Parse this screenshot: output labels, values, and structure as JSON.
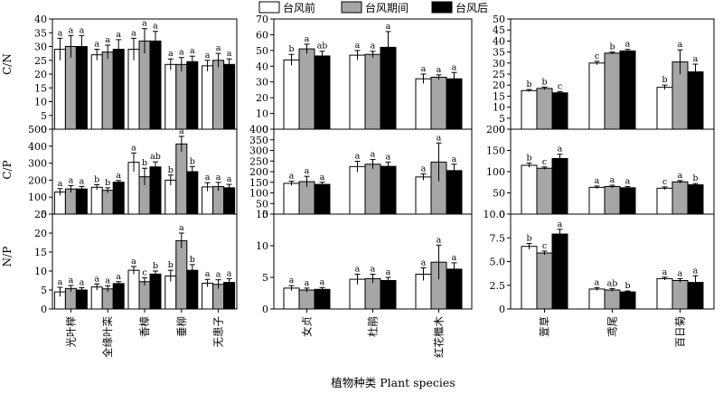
{
  "chart_data": {
    "type": "bar",
    "legend": {
      "position": "top-right",
      "series": [
        {
          "name": "台风前",
          "color": "#ffffff"
        },
        {
          "name": "台风期间",
          "color": "#a6a6a6"
        },
        {
          "name": "台风后",
          "color": "#000000"
        }
      ]
    },
    "xlabel": "植物种类  Plant species",
    "row_labels": [
      "C/N",
      "C/P",
      "N/P"
    ],
    "groups": [
      {
        "species": [
          "光叶榉",
          "全缘叶栾",
          "香樟",
          "垂柳",
          "无患子"
        ]
      },
      {
        "species": [
          "女贞",
          "杜鹃",
          "红花檵木"
        ]
      },
      {
        "species": [
          "萱草",
          "鸢尾",
          "百日菊"
        ]
      }
    ],
    "panels": [
      {
        "row": 0,
        "col": 0,
        "ylim": [
          0,
          40
        ],
        "ticks": [
          0,
          5,
          10,
          15,
          20,
          25,
          30,
          35,
          40
        ],
        "values": [
          [
            29,
            30,
            30
          ],
          [
            27,
            28,
            29
          ],
          [
            29,
            32,
            32
          ],
          [
            23.5,
            23.5,
            24.5
          ],
          [
            23,
            25,
            23.5
          ]
        ],
        "errors": [
          [
            4,
            4,
            4
          ],
          [
            2,
            2.5,
            3.5
          ],
          [
            4,
            4.5,
            3.5
          ],
          [
            2,
            2.5,
            2
          ],
          [
            2,
            2.5,
            2
          ]
        ],
        "letters": [
          [
            "a",
            "a",
            "a"
          ],
          [
            "a",
            "a",
            "a"
          ],
          [
            "a",
            "a",
            "a"
          ],
          [
            "a",
            "a",
            "a"
          ],
          [
            "a",
            "a",
            "a"
          ]
        ]
      },
      {
        "row": 0,
        "col": 1,
        "ylim": [
          0,
          70
        ],
        "ticks": [
          0,
          10,
          20,
          30,
          40,
          50,
          60,
          70
        ],
        "values": [
          [
            44,
            51,
            46.5
          ],
          [
            47,
            47.5,
            52
          ],
          [
            32,
            33,
            32
          ]
        ],
        "errors": [
          [
            3.5,
            3,
            3
          ],
          [
            3,
            2,
            10
          ],
          [
            3,
            1.5,
            4
          ]
        ],
        "letters": [
          [
            "b",
            "a",
            "ab"
          ],
          [
            "a",
            "a",
            "a"
          ],
          [
            "a",
            "a",
            "a"
          ]
        ]
      },
      {
        "row": 0,
        "col": 2,
        "ylim": [
          0,
          50
        ],
        "ticks": [
          0,
          5,
          10,
          15,
          20,
          25,
          30,
          35,
          40,
          45,
          50
        ],
        "values": [
          [
            17.5,
            18.5,
            16.5
          ],
          [
            30,
            34.5,
            35.5
          ],
          [
            19,
            30.5,
            26
          ]
        ],
        "errors": [
          [
            0.5,
            0.6,
            0.5
          ],
          [
            0.8,
            0.5,
            0.7
          ],
          [
            1,
            5.5,
            3.5
          ]
        ],
        "letters": [
          [
            "b",
            "b",
            "c"
          ],
          [
            "c",
            "b",
            "a"
          ],
          [
            "b",
            "a",
            "a"
          ]
        ]
      },
      {
        "row": 1,
        "col": 0,
        "ylim": [
          0,
          500
        ],
        "ticks": [
          0,
          100,
          200,
          300,
          400,
          500
        ],
        "values": [
          [
            130,
            148,
            148
          ],
          [
            158,
            140,
            188
          ],
          [
            305,
            220,
            278
          ],
          [
            200,
            413,
            250
          ],
          [
            160,
            162,
            155
          ]
        ],
        "errors": [
          [
            20,
            20,
            15
          ],
          [
            15,
            15,
            10
          ],
          [
            55,
            50,
            30
          ],
          [
            30,
            45,
            30
          ],
          [
            25,
            25,
            20
          ]
        ],
        "letters": [
          [
            "a",
            "a",
            "a"
          ],
          [
            "b",
            "b",
            "a"
          ],
          [
            "a",
            "b",
            "ab"
          ],
          [
            "b",
            "a",
            "b"
          ],
          [
            "a",
            "a",
            "a"
          ]
        ]
      },
      {
        "row": 1,
        "col": 1,
        "ylim": [
          0,
          400
        ],
        "ticks": [
          0,
          50,
          100,
          150,
          200,
          250,
          300,
          350,
          400
        ],
        "values": [
          [
            145,
            153,
            140
          ],
          [
            224,
            235,
            225
          ],
          [
            175,
            245,
            205
          ]
        ],
        "errors": [
          [
            10,
            25,
            10
          ],
          [
            25,
            22,
            20
          ],
          [
            15,
            90,
            30
          ]
        ],
        "letters": [
          [
            "a",
            "a",
            "a"
          ],
          [
            "a",
            "a",
            "a"
          ],
          [
            "a",
            "a",
            "a"
          ]
        ]
      },
      {
        "row": 1,
        "col": 2,
        "ylim": [
          0,
          200
        ],
        "ticks": [
          0,
          50,
          100,
          150,
          200
        ],
        "values": [
          [
            115,
            108,
            131
          ],
          [
            63,
            65,
            62
          ],
          [
            61,
            76,
            69
          ]
        ],
        "errors": [
          [
            5,
            3,
            10
          ],
          [
            3,
            3,
            3
          ],
          [
            3,
            3,
            3
          ]
        ],
        "letters": [
          [
            "b",
            "c",
            "a"
          ],
          [
            "a",
            "a",
            "a"
          ],
          [
            "c",
            "a",
            "b"
          ]
        ]
      },
      {
        "row": 2,
        "col": 0,
        "ylim": [
          0,
          25
        ],
        "ticks": [
          0,
          5,
          10,
          15,
          20,
          25
        ],
        "values": [
          [
            4.5,
            5.4,
            5
          ],
          [
            5.8,
            5.3,
            6.7
          ],
          [
            10.2,
            7.2,
            9.2
          ],
          [
            8.7,
            18,
            10.2
          ],
          [
            6.8,
            6.5,
            7
          ]
        ],
        "errors": [
          [
            1.2,
            0.8,
            0.6
          ],
          [
            0.8,
            0.8,
            0.5
          ],
          [
            1,
            1,
            0.8
          ],
          [
            1.5,
            2,
            1.5
          ],
          [
            1,
            1.2,
            1
          ]
        ],
        "letters": [
          [
            "a",
            "a",
            "a"
          ],
          [
            "a",
            "a",
            "a"
          ],
          [
            "a",
            "c",
            "b"
          ],
          [
            "b",
            "a",
            "b"
          ],
          [
            "a",
            "a",
            "a"
          ]
        ]
      },
      {
        "row": 2,
        "col": 1,
        "ylim": [
          0,
          15
        ],
        "ticks": [
          0,
          5,
          10,
          15
        ],
        "values": [
          [
            3.3,
            3,
            3.1
          ],
          [
            4.7,
            4.8,
            4.5
          ],
          [
            5.5,
            7.4,
            6.3
          ]
        ],
        "errors": [
          [
            0.4,
            0.3,
            0.3
          ],
          [
            0.8,
            0.7,
            0.5
          ],
          [
            1,
            2.7,
            1
          ]
        ],
        "letters": [
          [
            "a",
            "a",
            "a"
          ],
          [
            "a",
            "a",
            "a"
          ],
          [
            "a",
            "a",
            "a"
          ]
        ]
      },
      {
        "row": 2,
        "col": 2,
        "ylim": [
          0,
          10
        ],
        "ticks": [
          0,
          2.5,
          5.0,
          7.5,
          10.0
        ],
        "tick_labels": [
          "0",
          "2.5",
          "5.0",
          "7.5",
          "10.0"
        ],
        "values": [
          [
            6.6,
            5.9,
            7.9
          ],
          [
            2.1,
            2.0,
            1.8
          ],
          [
            3.2,
            3.0,
            2.8
          ]
        ],
        "errors": [
          [
            0.3,
            0.2,
            0.5
          ],
          [
            0.15,
            0.15,
            0.1
          ],
          [
            0.15,
            0.2,
            0.7
          ]
        ],
        "letters": [
          [
            "b",
            "c",
            "a"
          ],
          [
            "a",
            "ab",
            "b"
          ],
          [
            "a",
            "a",
            "a"
          ]
        ]
      }
    ]
  }
}
